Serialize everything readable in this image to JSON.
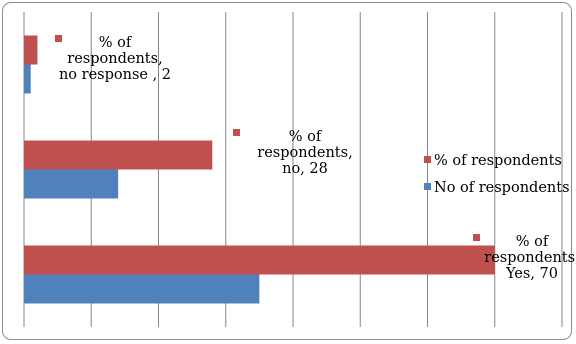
{
  "chart_data": {
    "type": "bar",
    "orientation": "horizontal",
    "categories": [
      "no response",
      "no",
      "Yes"
    ],
    "series": [
      {
        "name": "No of respondents",
        "color": "#4f81bd",
        "values": [
          1,
          14,
          35
        ]
      },
      {
        "name": "% of respondents",
        "color": "#c0504d",
        "values": [
          2,
          28,
          70
        ]
      }
    ],
    "data_labels": [
      [
        "% of",
        "respondents,",
        "no response , 2"
      ],
      [
        "% of",
        "respondents,",
        "no, 28"
      ],
      [
        "% of",
        "respondents,",
        "Yes, 70"
      ]
    ],
    "xlim": [
      0,
      80
    ],
    "grid": true,
    "legend_position": "right"
  }
}
